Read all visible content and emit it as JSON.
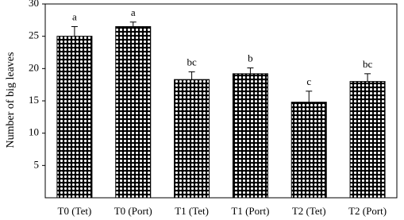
{
  "chart_data": {
    "type": "bar",
    "y_label": "Number of big leaves",
    "categories": [
      "T0 (Tet)",
      "T0 (Port)",
      "T1 (Tet)",
      "T1 (Port)",
      "T2 (Tet)",
      "T2 (Port)"
    ],
    "values": [
      25,
      26.5,
      18.3,
      19.2,
      14.8,
      18
    ],
    "errors": [
      1.5,
      0.7,
      1.2,
      0.9,
      1.7,
      1.2
    ],
    "letters": [
      "a",
      "a",
      "bc",
      "b",
      "c",
      "bc"
    ],
    "ylim": [
      0,
      30
    ],
    "yticks": [
      5,
      10,
      15,
      20,
      25,
      30
    ],
    "grid": false
  }
}
